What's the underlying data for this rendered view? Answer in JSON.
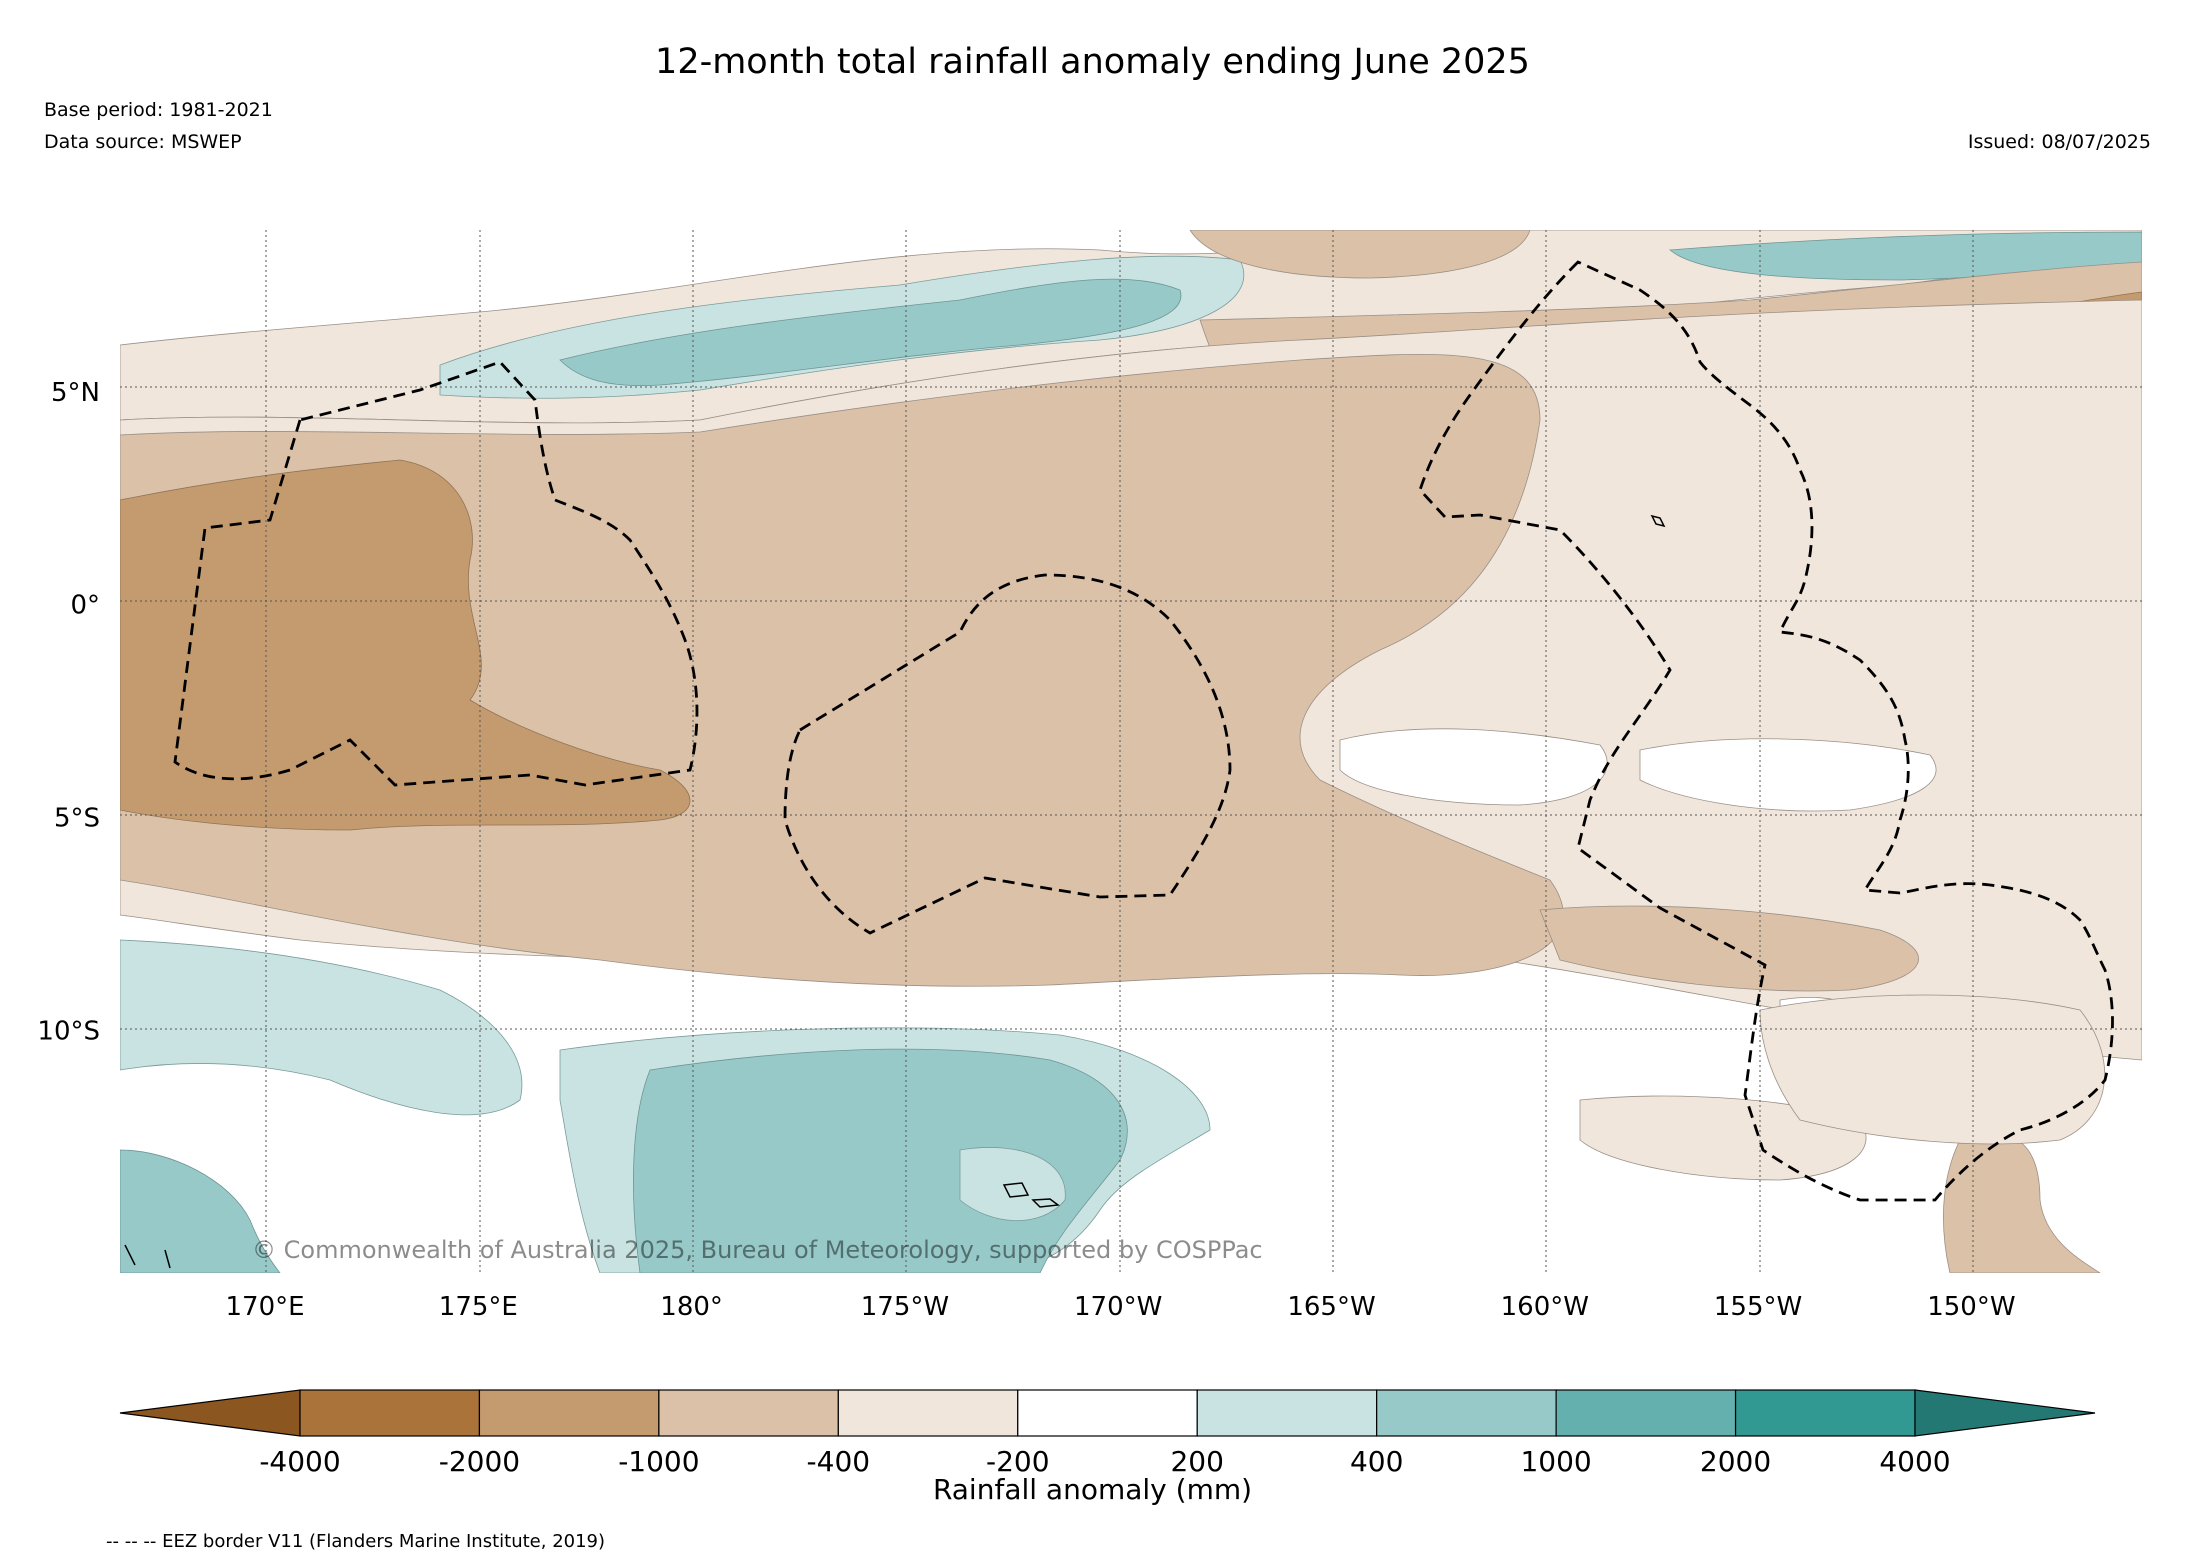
{
  "header": {
    "title": "12-month total rainfall anomaly ending June 2025",
    "base_period": "Base period: 1981-2021",
    "data_source": "Data source: MSWEP",
    "issued": "Issued: 08/07/2025"
  },
  "map": {
    "lat_ticks": [
      {
        "label": "5°N",
        "lat": 5
      },
      {
        "label": "0°",
        "lat": 0
      },
      {
        "label": "5°S",
        "lat": -5
      },
      {
        "label": "10°S",
        "lat": -10
      }
    ],
    "lon_ticks": [
      {
        "label": "170°E",
        "lon": 170
      },
      {
        "label": "175°E",
        "lon": 175
      },
      {
        "label": "180°",
        "lon": 180
      },
      {
        "label": "175°W",
        "lon": 185
      },
      {
        "label": "170°W",
        "lon": 190
      },
      {
        "label": "165°W",
        "lon": 195
      },
      {
        "label": "160°W",
        "lon": 200
      },
      {
        "label": "155°W",
        "lon": 205
      },
      {
        "label": "150°W",
        "lon": 210
      }
    ],
    "lat_range": [
      -15.7,
      8.8
    ],
    "lon_range": [
      166.6,
      214.0
    ],
    "copyright": "© Commonwealth of Australia 2025, Bureau of Meteorology, supported by COSPPac"
  },
  "colorbar": {
    "title": "Rainfall anomaly (mm)",
    "bins": [
      {
        "from": null,
        "to": -4000,
        "color": "#8c5620"
      },
      {
        "from": -4000,
        "to": -2000,
        "color": "#aa733a"
      },
      {
        "from": -2000,
        "to": -1000,
        "color": "#c49a6f"
      },
      {
        "from": -1000,
        "to": -400,
        "color": "#dbc1a8"
      },
      {
        "from": -400,
        "to": -200,
        "color": "#f1e6dc"
      },
      {
        "from": -200,
        "to": 200,
        "color": "#ffffff"
      },
      {
        "from": 200,
        "to": 400,
        "color": "#c9e3e2"
      },
      {
        "from": 400,
        "to": 1000,
        "color": "#97c9c8"
      },
      {
        "from": 1000,
        "to": 2000,
        "color": "#64b0ae"
      },
      {
        "from": 2000,
        "to": 4000,
        "color": "#319892"
      },
      {
        "from": 4000,
        "to": null,
        "color": "#247874"
      }
    ],
    "tick_labels": [
      "-4000",
      "-2000",
      "-1000",
      "-400",
      "-200",
      "200",
      "400",
      "1000",
      "2000",
      "4000"
    ]
  },
  "legend": {
    "eez_note": "-- -- -- EEZ border V11 (Flanders Marine Institute, 2019)"
  }
}
